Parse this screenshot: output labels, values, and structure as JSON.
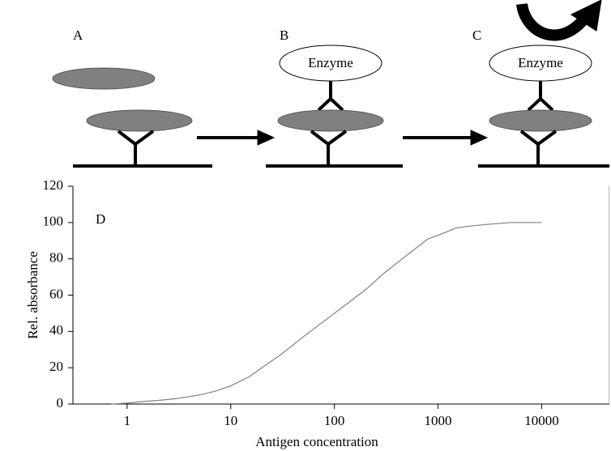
{
  "diagram": {
    "panel_labels": [
      "A",
      "B",
      "C"
    ],
    "enzyme_labels": [
      "Enzyme",
      "Enzyme"
    ]
  },
  "chart_data": {
    "type": "line",
    "annotation": "D",
    "x_label": "Antigen concentration",
    "y_label": "Rel. absorbance",
    "x": [
      0.7,
      1,
      1.5,
      2,
      3,
      5,
      7,
      10,
      15,
      20,
      30,
      50,
      100,
      200,
      300,
      500,
      800,
      1000,
      1500,
      2000,
      3000,
      5000,
      10000
    ],
    "series": [
      {
        "color": "#808080",
        "values": [
          0,
          0.5,
          1.5,
          2,
          3,
          5,
          7,
          10,
          15,
          20,
          27,
          37,
          50,
          63,
          72,
          82,
          91,
          93,
          97,
          98,
          99,
          100,
          100
        ]
      }
    ],
    "xlog": true,
    "xlim": [
      0.3,
      45000
    ],
    "ylim": [
      0,
      120
    ],
    "xticks": [
      1,
      10,
      100,
      1000,
      10000
    ],
    "yticks": [
      0,
      20,
      40,
      60,
      80,
      100,
      120
    ]
  }
}
